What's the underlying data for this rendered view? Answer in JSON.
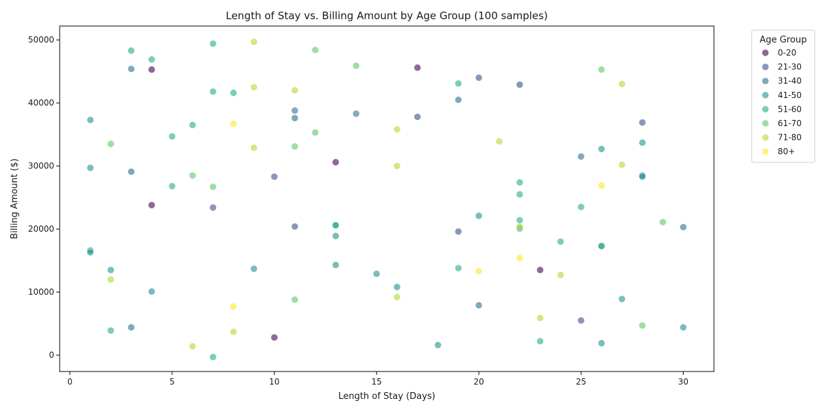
{
  "chart_data": {
    "type": "scatter",
    "title": "Length of Stay vs. Billing Amount by Age Group (100 samples)",
    "xlabel": "Length of Stay (Days)",
    "ylabel": "Billing Amount ($)",
    "xlim": [
      -0.5,
      31.5
    ],
    "ylim": [
      -2600,
      52200
    ],
    "x_ticks": [
      0,
      5,
      10,
      15,
      20,
      25,
      30
    ],
    "y_ticks": [
      0,
      10000,
      20000,
      30000,
      40000,
      50000
    ],
    "grid": false,
    "legend_title": "Age Group",
    "legend_position": "outside-upper-right",
    "series": [
      {
        "name": "0-20",
        "color": "#440154",
        "points": [
          [
            4,
            45300
          ],
          [
            4,
            23800
          ],
          [
            13,
            30600
          ],
          [
            17,
            45600
          ],
          [
            10,
            2800
          ],
          [
            23,
            13500
          ]
        ]
      },
      {
        "name": "21-30",
        "color": "#3b528b",
        "points": [
          [
            20,
            44000
          ],
          [
            22,
            42900
          ],
          [
            17,
            37800
          ],
          [
            28,
            36900
          ],
          [
            10,
            28300
          ],
          [
            7,
            23400
          ],
          [
            11,
            20400
          ],
          [
            19,
            19600
          ],
          [
            25,
            5500
          ]
        ]
      },
      {
        "name": "31-40",
        "color": "#2c728e",
        "points": [
          [
            3,
            45400
          ],
          [
            11,
            38800
          ],
          [
            11,
            37600
          ],
          [
            14,
            38300
          ],
          [
            19,
            40500
          ],
          [
            3,
            29100
          ],
          [
            25,
            31500
          ],
          [
            30,
            20300
          ],
          [
            20,
            7900
          ],
          [
            3,
            4400
          ],
          [
            28,
            28500
          ]
        ]
      },
      {
        "name": "41-50",
        "color": "#21918c",
        "points": [
          [
            1,
            37300
          ],
          [
            1,
            29700
          ],
          [
            28,
            28300
          ],
          [
            13,
            20600
          ],
          [
            13,
            18900
          ],
          [
            1,
            16600
          ],
          [
            1,
            16300
          ],
          [
            2,
            13500
          ],
          [
            9,
            13700
          ],
          [
            13,
            14300
          ],
          [
            15,
            12900
          ],
          [
            16,
            10800
          ],
          [
            4,
            10100
          ],
          [
            20,
            22100
          ],
          [
            22,
            20100
          ],
          [
            26,
            17300
          ],
          [
            28,
            33700
          ],
          [
            26,
            32700
          ],
          [
            27,
            8900
          ],
          [
            18,
            1600
          ],
          [
            30,
            4400
          ],
          [
            26,
            1900
          ]
        ]
      },
      {
        "name": "51-60",
        "color": "#28ae80",
        "points": [
          [
            3,
            48300
          ],
          [
            4,
            46900
          ],
          [
            7,
            49400
          ],
          [
            7,
            41800
          ],
          [
            8,
            41600
          ],
          [
            19,
            43100
          ],
          [
            6,
            36500
          ],
          [
            5,
            34700
          ],
          [
            5,
            26800
          ],
          [
            22,
            27400
          ],
          [
            22,
            25500
          ],
          [
            25,
            23500
          ],
          [
            22,
            21400
          ],
          [
            13,
            20600
          ],
          [
            24,
            18000
          ],
          [
            26,
            17300
          ],
          [
            19,
            13800
          ],
          [
            2,
            3900
          ],
          [
            23,
            2200
          ],
          [
            7,
            -300
          ]
        ]
      },
      {
        "name": "61-70",
        "color": "#5ec962",
        "points": [
          [
            12,
            48400
          ],
          [
            14,
            45900
          ],
          [
            26,
            45300
          ],
          [
            11,
            33100
          ],
          [
            12,
            35300
          ],
          [
            2,
            33500
          ],
          [
            6,
            28500
          ],
          [
            7,
            26700
          ],
          [
            11,
            8800
          ],
          [
            29,
            21100
          ],
          [
            28,
            4700
          ]
        ]
      },
      {
        "name": "71-80",
        "color": "#addc30",
        "points": [
          [
            9,
            49700
          ],
          [
            9,
            42500
          ],
          [
            11,
            42000
          ],
          [
            27,
            43000
          ],
          [
            9,
            32900
          ],
          [
            16,
            35800
          ],
          [
            16,
            30000
          ],
          [
            21,
            33900
          ],
          [
            27,
            30200
          ],
          [
            22,
            20400
          ],
          [
            24,
            12700
          ],
          [
            2,
            12000
          ],
          [
            16,
            9200
          ],
          [
            8,
            3700
          ],
          [
            23,
            5900
          ],
          [
            6,
            1400
          ]
        ]
      },
      {
        "name": "80+",
        "color": "#fde725",
        "points": [
          [
            8,
            36700
          ],
          [
            26,
            26900
          ],
          [
            22,
            15400
          ],
          [
            20,
            13300
          ],
          [
            8,
            7700
          ]
        ]
      }
    ]
  }
}
